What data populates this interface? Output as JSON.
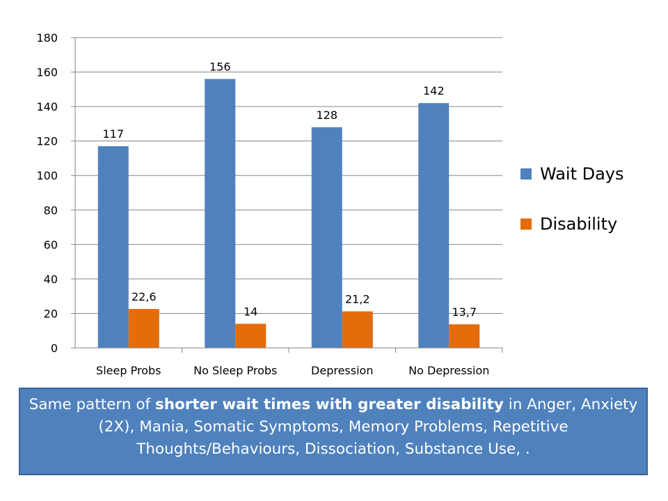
{
  "chart_data": {
    "type": "bar",
    "categories": [
      "Sleep Probs",
      "No Sleep Probs",
      "Depression",
      "No Depression"
    ],
    "series": [
      {
        "name": "Wait Days",
        "values": [
          117,
          156,
          128,
          142
        ],
        "labels": [
          "117",
          "156",
          "128",
          "142"
        ],
        "color": "#4f81bd"
      },
      {
        "name": "Disability",
        "values": [
          22.6,
          14,
          21.2,
          13.7
        ],
        "labels": [
          "22,6",
          "14",
          "21,2",
          "13,7"
        ],
        "color": "#e46c0a"
      }
    ],
    "ylim": [
      0,
      180
    ],
    "yticks": [
      0,
      20,
      40,
      60,
      80,
      100,
      120,
      140,
      160,
      180
    ],
    "grid": true,
    "legend_position": "right"
  },
  "legend": {
    "items": [
      {
        "label": "Wait Days",
        "color": "#4f81bd"
      },
      {
        "label": "Disability",
        "color": "#e46c0a"
      }
    ]
  },
  "note": {
    "prefix": "Same pattern of ",
    "bold": "shorter wait times with greater disability",
    "suffix": " in Anger, Anxiety (2X), Mania, Somatic Symptoms, Memory Problems, Repetitive Thoughts/Behaviours, Dissociation, Substance Use, ."
  },
  "colors": {
    "note_bg": "#4f81bd",
    "grid": "#868686"
  }
}
